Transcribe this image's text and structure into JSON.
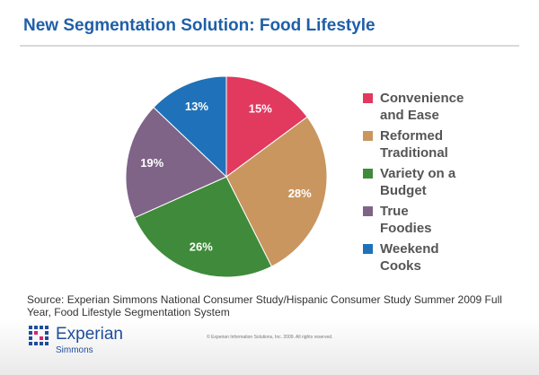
{
  "chart_data": {
    "type": "pie",
    "title": "New Segmentation Solution: Food Lifestyle",
    "categories": [
      "Convenience and Ease",
      "Reformed Traditional",
      "Variety on a Budget",
      "True Foodies",
      "Weekend Cooks"
    ],
    "values": [
      15,
      28,
      26,
      19,
      13
    ],
    "value_labels": [
      "15%",
      "28%",
      "26%",
      "19%",
      "13%"
    ],
    "colors": [
      "#e2395f",
      "#c9965f",
      "#3f8b3b",
      "#7f6488",
      "#1f72b9"
    ]
  },
  "source": "Source: Experian Simmons National Consumer Study/Hispanic Consumer Study Summer 2009 Full Year, Food Lifestyle Segmentation System",
  "footer": {
    "logo": "Experian",
    "logo_sub": "Simmons",
    "copyright": "© Experian Information Solutions, Inc. 2009.  All rights reserved."
  }
}
